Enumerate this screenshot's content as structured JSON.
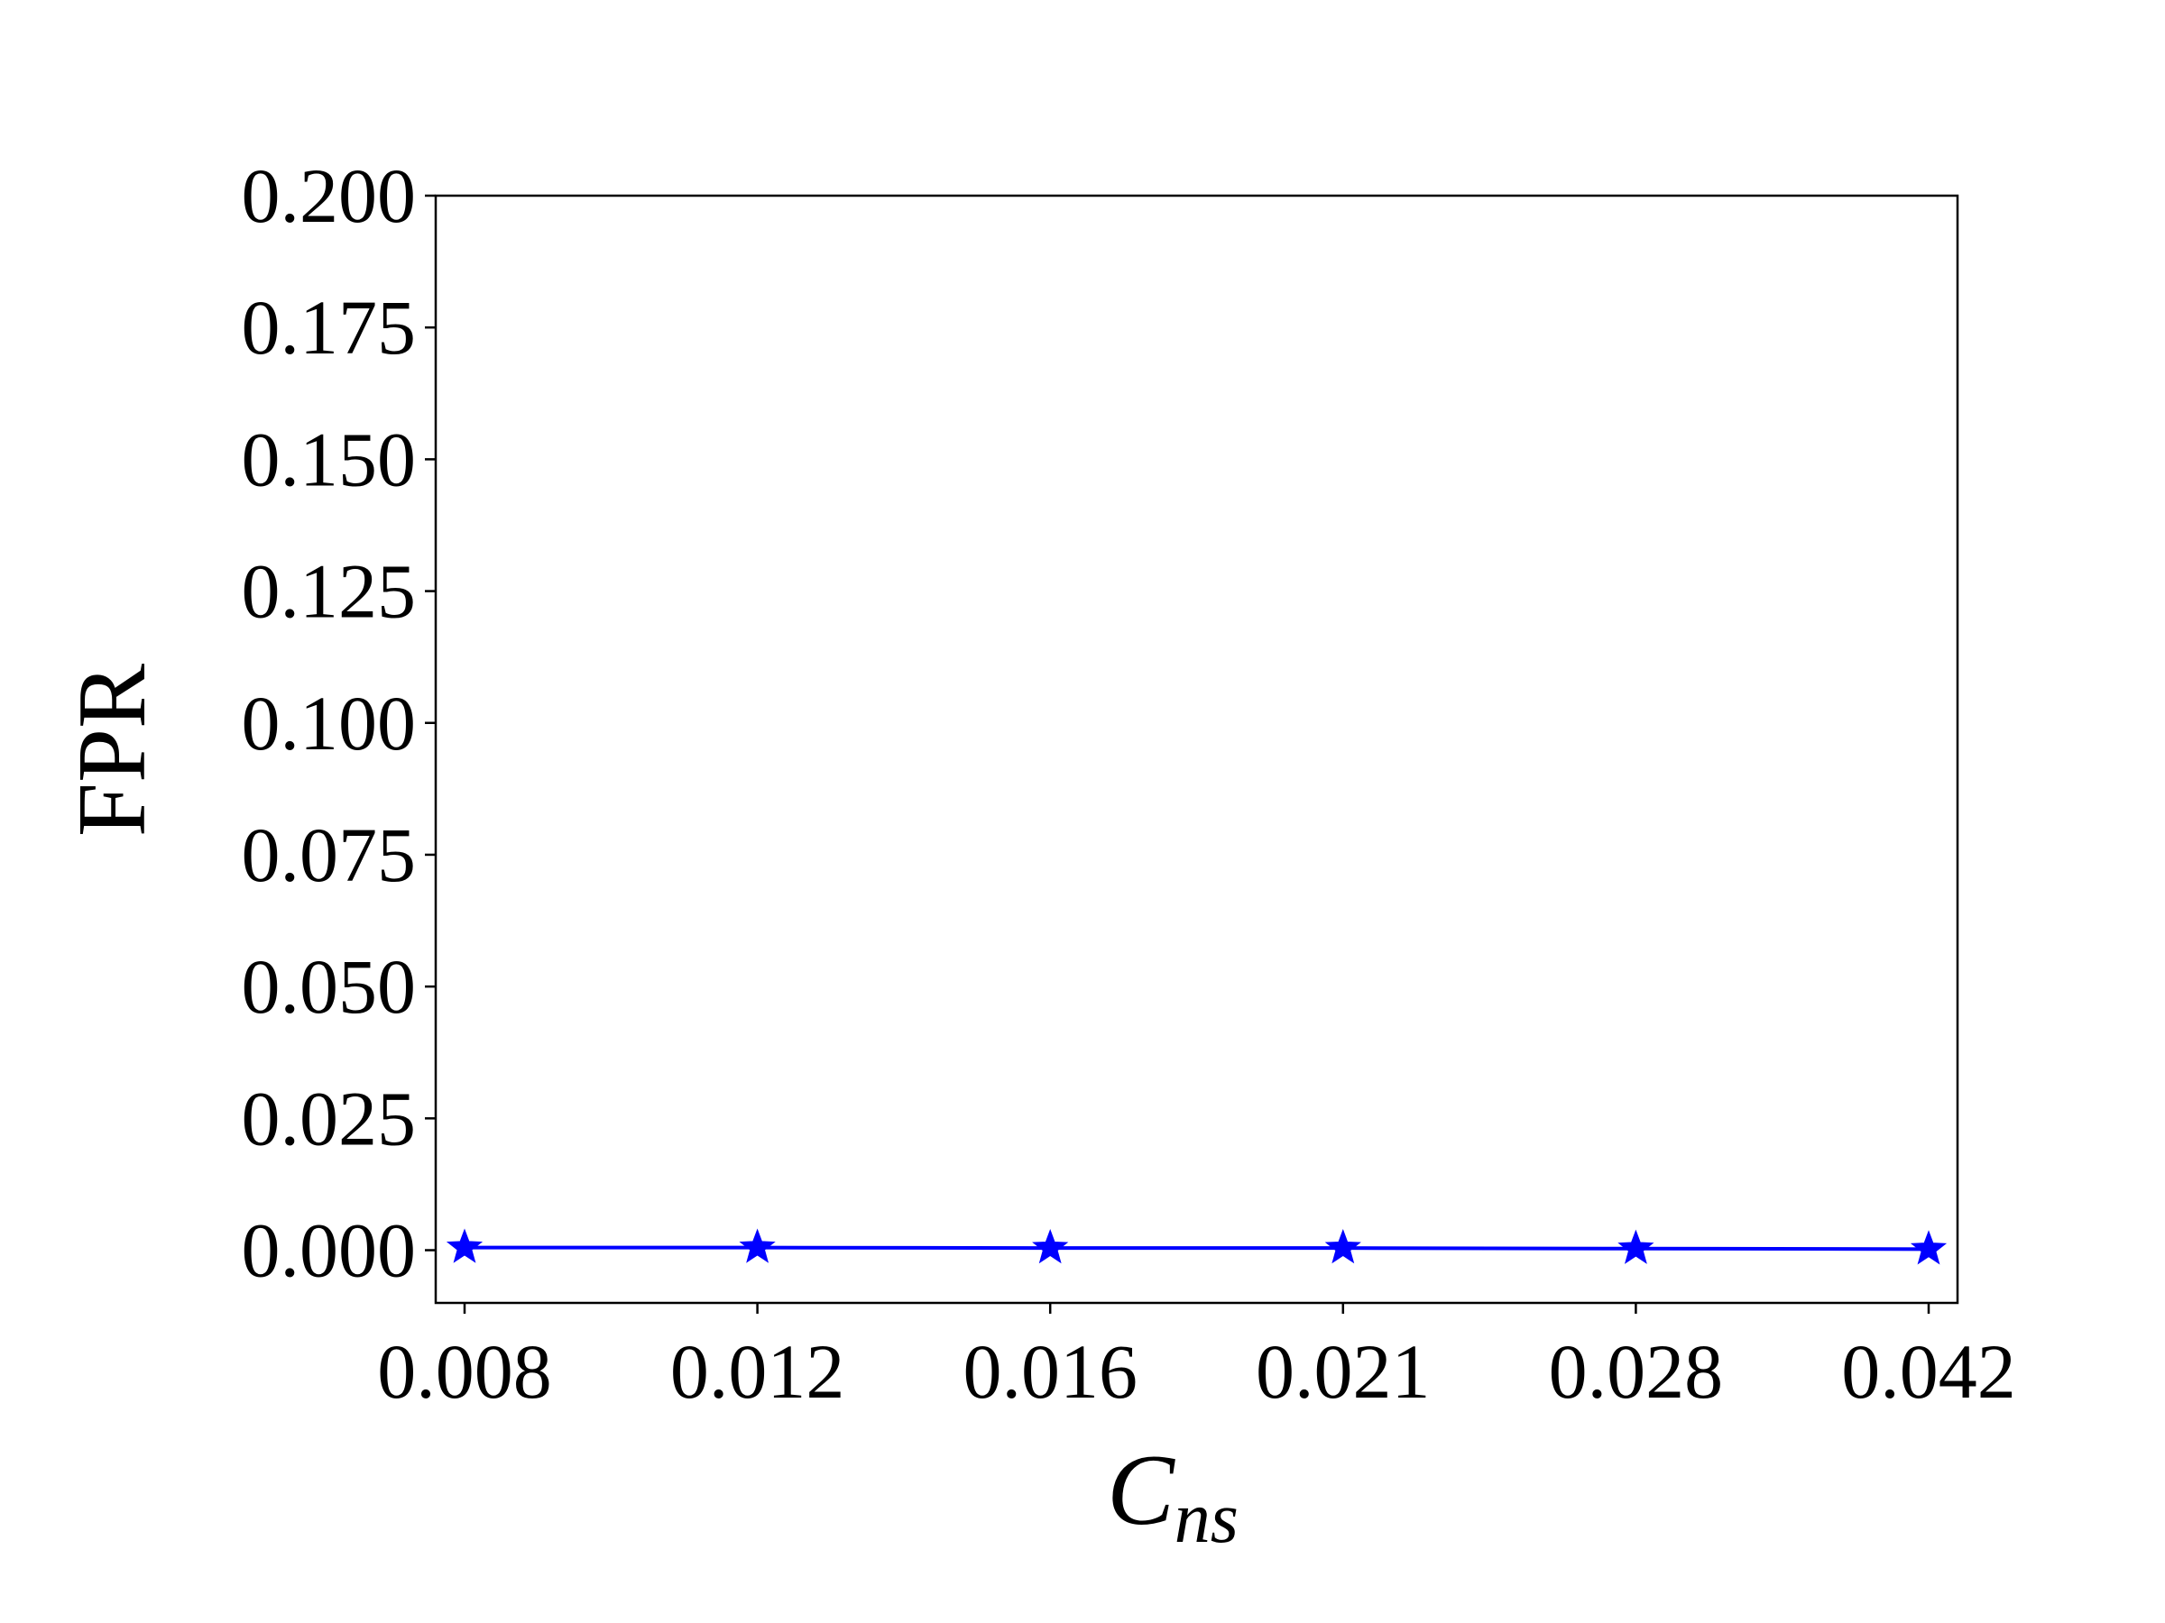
{
  "chart_data": {
    "type": "line",
    "title": "",
    "xlabel": "C",
    "xlabel_subscript": "ns",
    "ylabel": "FPR",
    "categories": [
      "0.008",
      "0.012",
      "0.016",
      "0.021",
      "0.028",
      "0.042"
    ],
    "series": [
      {
        "name": "FPR",
        "color": "#0000ff",
        "marker": "star",
        "values": [
          0.0005,
          0.0005,
          0.0004,
          0.0004,
          0.0003,
          0.0002
        ]
      }
    ],
    "ylim": [
      -0.01,
      0.2
    ],
    "yticks": [
      0.0,
      0.025,
      0.05,
      0.075,
      0.1,
      0.125,
      0.15,
      0.175,
      0.2
    ],
    "ytick_labels": [
      "0.000",
      "0.025",
      "0.050",
      "0.075",
      "0.100",
      "0.125",
      "0.150",
      "0.175",
      "0.200"
    ],
    "grid": false,
    "legend": "none"
  }
}
